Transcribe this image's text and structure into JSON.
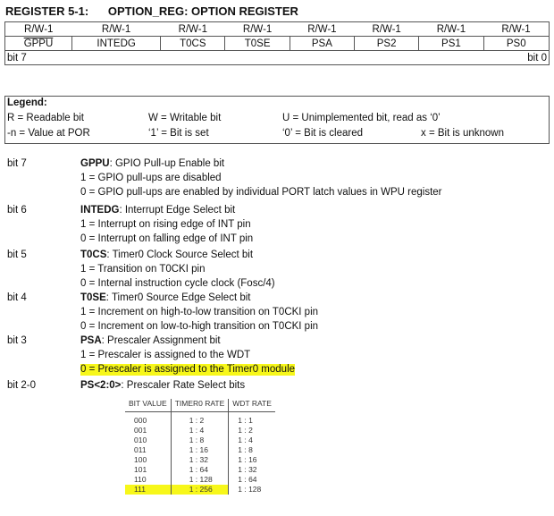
{
  "title": "REGISTER 5-1:      OPTION_REG: OPTION REGISTER",
  "register": {
    "access": [
      "R/W-1",
      "R/W-1",
      "R/W-1",
      "R/W-1",
      "R/W-1",
      "R/W-1",
      "R/W-1",
      "R/W-1"
    ],
    "bits": [
      "GPPU",
      "INTEDG",
      "T0CS",
      "T0SE",
      "PSA",
      "PS2",
      "PS1",
      "PS0"
    ],
    "msb": "bit 7",
    "lsb": "bit 0"
  },
  "legend": {
    "title": "Legend:",
    "items": [
      "R = Readable bit",
      "W = Writable bit",
      "U = Unimplemented bit, read as ‘0’",
      "-n = Value at POR",
      "‘1’ = Bit is set",
      "‘0’ = Bit is cleared",
      "x = Bit is unknown"
    ]
  },
  "bits": [
    {
      "label": "bit 7",
      "name": "GPPU",
      "desc": ": GPIO Pull-up Enable bit",
      "lines": [
        "1 = GPIO pull-ups are disabled",
        "0 = GPIO pull-ups are enabled by individual PORT latch values in WPU register"
      ]
    },
    {
      "label": "bit 6",
      "name": "INTEDG",
      "desc": ": Interrupt Edge Select bit",
      "lines": [
        "1 = Interrupt on rising edge of INT pin",
        "0 = Interrupt on falling edge of INT pin"
      ]
    },
    {
      "label": "bit 5",
      "name": "T0CS",
      "desc": ": Timer0 Clock Source Select bit",
      "lines": [
        "1 = Transition on T0CKI pin",
        "0 = Internal instruction cycle clock (Fosc/4)"
      ]
    },
    {
      "label": "bit 4",
      "name": "T0SE",
      "desc": ": Timer0 Source Edge Select bit",
      "lines": [
        "1 = Increment on high-to-low transition on T0CKI pin",
        "0 = Increment on low-to-high transition on T0CKI pin"
      ]
    },
    {
      "label": "bit 3",
      "name": "PSA",
      "desc": ": Prescaler Assignment bit",
      "lines": [
        "1 = Prescaler is assigned to the WDT",
        "0 = Prescaler is assigned to the Timer0 module"
      ]
    },
    {
      "label": "bit 2-0",
      "name": "PS<2:0>",
      "desc": ": Prescaler Rate Select bits",
      "lines": []
    }
  ],
  "highlight_color": "#f7f71a",
  "rate_table": {
    "headers": [
      "BIT VALUE",
      "TIMER0 RATE",
      "WDT RATE"
    ],
    "rows": [
      [
        "000",
        "1 : 2",
        "1 : 1"
      ],
      [
        "001",
        "1 : 4",
        "1 : 2"
      ],
      [
        "010",
        "1 : 8",
        "1 : 4"
      ],
      [
        "011",
        "1 : 16",
        "1 : 8"
      ],
      [
        "100",
        "1 : 32",
        "1 : 16"
      ],
      [
        "101",
        "1 : 64",
        "1 : 32"
      ],
      [
        "110",
        "1 : 128",
        "1 : 64"
      ],
      [
        "111",
        "1 : 256",
        "1 : 128"
      ]
    ]
  }
}
